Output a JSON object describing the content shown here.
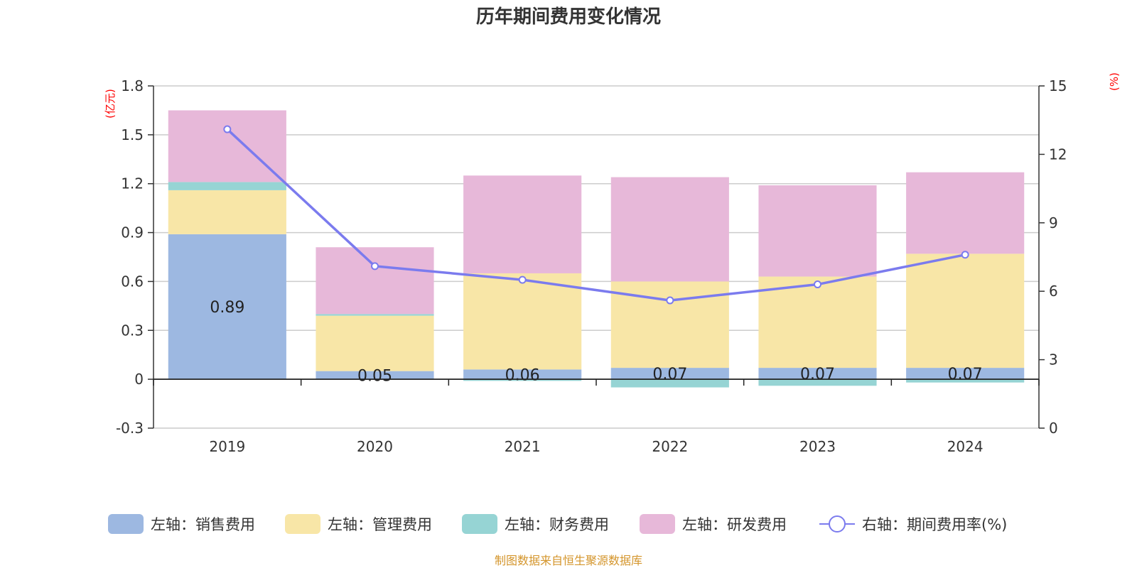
{
  "chart_data": {
    "type": "bar",
    "title": "历年期间费用变化情况",
    "left_unit": "(亿元)",
    "right_unit": "(%)",
    "categories": [
      "2019",
      "2020",
      "2021",
      "2022",
      "2023",
      "2024"
    ],
    "left_axis": {
      "ylim": [
        -0.3,
        1.8
      ],
      "ticks": [
        "-0.3",
        "0",
        "0.3",
        "0.6",
        "0.9",
        "1.2",
        "1.5",
        "1.8"
      ]
    },
    "right_axis": {
      "ylim": [
        0,
        15
      ],
      "ticks": [
        "0",
        "3",
        "6",
        "9",
        "12",
        "15"
      ]
    },
    "series": [
      {
        "name": "左轴：销售费用",
        "kind": "bar",
        "color": "#9db8e1",
        "values": [
          0.89,
          0.05,
          0.06,
          0.07,
          0.07,
          0.07
        ]
      },
      {
        "name": "左轴：管理费用",
        "kind": "bar",
        "color": "#f8e6a7",
        "values": [
          0.27,
          0.34,
          0.59,
          0.53,
          0.56,
          0.7
        ]
      },
      {
        "name": "左轴：财务费用",
        "kind": "bar",
        "color": "#96d4d4",
        "values": [
          0.05,
          0.01,
          -0.01,
          -0.05,
          -0.04,
          -0.02
        ]
      },
      {
        "name": "左轴：研发费用",
        "kind": "bar",
        "color": "#e7b8d9",
        "values": [
          0.44,
          0.41,
          0.6,
          0.64,
          0.56,
          0.5
        ]
      },
      {
        "name": "右轴：期间费用率(%)",
        "kind": "line",
        "color": "#7b7bee",
        "values": [
          13.1,
          7.1,
          6.5,
          5.6,
          6.3,
          7.6
        ]
      }
    ],
    "data_labels": [
      "0.89",
      "0.05",
      "0.06",
      "0.07",
      "0.07",
      "0.07"
    ],
    "grid": true,
    "legend_position": "bottom"
  },
  "source_text": "制图数据来自恒生聚源数据库"
}
